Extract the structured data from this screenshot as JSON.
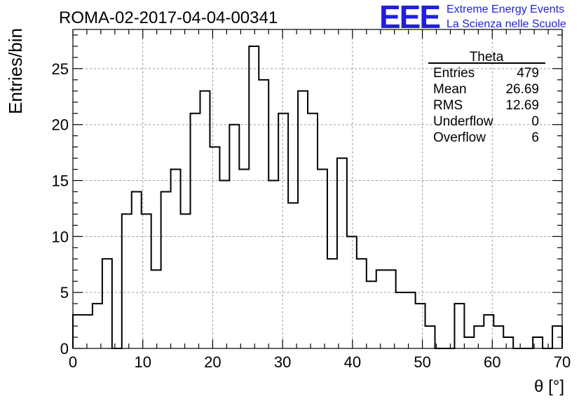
{
  "page": {
    "title": "ROMA-02-2017-04-04-00341",
    "logo": {
      "mark": "EEE",
      "line1": "Extreme Energy Events",
      "line2": "La Scienza nelle Scuole",
      "color": "#1f1fe0"
    }
  },
  "chart_data": {
    "type": "bar",
    "title": "ROMA-02-2017-04-04-00341",
    "xlabel": "θ [°]",
    "ylabel": "Entries/bin",
    "xlim": [
      0,
      70
    ],
    "ylim": [
      0,
      28.5
    ],
    "grid": true,
    "bin_width": 1.4,
    "x_bin_edges_start": 0,
    "x_ticks": [
      0,
      10,
      20,
      30,
      40,
      50,
      60,
      70
    ],
    "y_ticks": [
      0,
      5,
      10,
      15,
      20,
      25
    ],
    "values": [
      3,
      3,
      4,
      8,
      0,
      12,
      14,
      12,
      7,
      14,
      16,
      12,
      21,
      23,
      18,
      15,
      20,
      16,
      27,
      24,
      15,
      21,
      13,
      23,
      21,
      16,
      8,
      17,
      10,
      8,
      6,
      7,
      7,
      5,
      5,
      4,
      2,
      0,
      0,
      4,
      1,
      2,
      3,
      2,
      1,
      0,
      0,
      1,
      0,
      2
    ],
    "line_color": "#000000",
    "stats": {
      "name": "Theta",
      "rows": [
        {
          "label": "Entries",
          "value": "479"
        },
        {
          "label": "Mean",
          "value": "26.69"
        },
        {
          "label": "RMS",
          "value": "12.69"
        },
        {
          "label": "Underflow",
          "value": "0"
        },
        {
          "label": "Overflow",
          "value": "6"
        }
      ]
    }
  }
}
